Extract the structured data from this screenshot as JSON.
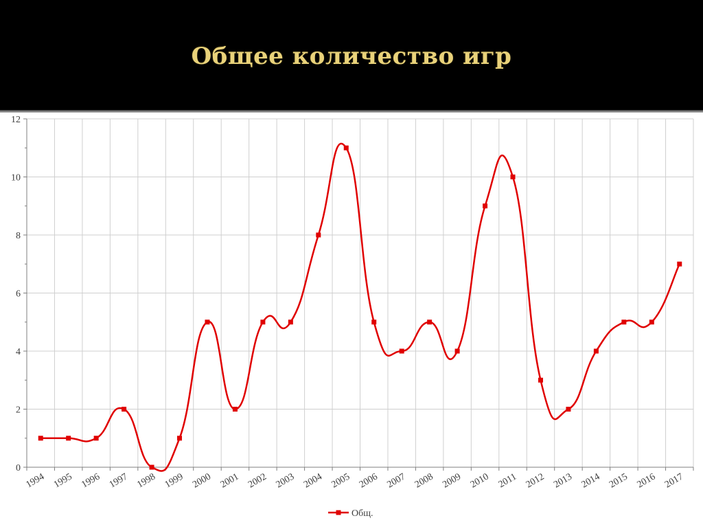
{
  "slide": {
    "title": "Общее количество игр"
  },
  "colors": {
    "series": "#e00000",
    "grid": "#cfcfcf",
    "axis": "#7f7f7f",
    "title": "#e9d27a",
    "band": "#000000"
  },
  "chart_data": {
    "type": "line",
    "smooth": true,
    "title": "",
    "xlabel": "",
    "ylabel": "",
    "ylim": [
      0,
      12
    ],
    "yticks": [
      0,
      2,
      4,
      6,
      8,
      10,
      12
    ],
    "grid": true,
    "legend_position": "bottom",
    "categories": [
      "1994",
      "1995",
      "1996",
      "1997",
      "1998",
      "1999",
      "2000",
      "2001",
      "2002",
      "2003",
      "2004",
      "2005",
      "2006",
      "2007",
      "2008",
      "2009",
      "2010",
      "2011",
      "2012",
      "2013",
      "2014",
      "2015",
      "2016",
      "2017"
    ],
    "series": [
      {
        "name": "Общ.",
        "values": [
          1,
          1,
          1,
          2,
          0,
          1,
          5,
          2,
          5,
          5,
          8,
          11,
          5,
          4,
          5,
          4,
          9,
          10,
          3,
          2,
          4,
          5,
          5,
          7
        ]
      }
    ]
  }
}
